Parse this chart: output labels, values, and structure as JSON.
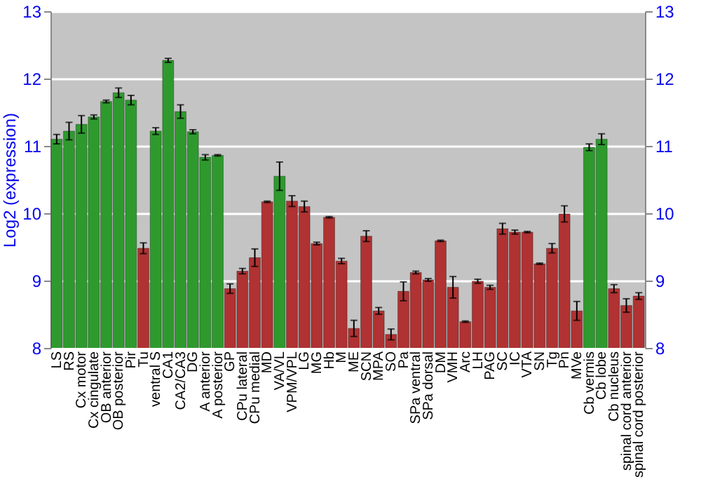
{
  "chart_data": {
    "type": "bar",
    "ylabel": "Log2 (expression)",
    "categories": [
      "LS",
      "RS",
      "Cx motor",
      "Cx cingulate",
      "OB anterior",
      "OB posterior",
      "Pir",
      "Tu",
      "ventral S",
      "CA1",
      "CA2/CA3",
      "DG",
      "A anterior",
      "A posterior",
      "GP",
      "CPu lateral",
      "CPu medial",
      "MD",
      "VA/VL",
      "VPM/VPL",
      "LG",
      "MG",
      "Hb",
      "M",
      "ME",
      "SCN",
      "MPA",
      "SO",
      "Pa",
      "SPa ventral",
      "SPa dorsal",
      "DM",
      "VMH",
      "Arc",
      "LH",
      "PAG",
      "SC",
      "IC",
      "VTA",
      "SN",
      "Tg",
      "Pn",
      "MVe",
      "Cb vermis",
      "Cb lobe",
      "Cb nucleus",
      "spinal cord anterior",
      "spinal cord posterior"
    ],
    "values": [
      11.1,
      11.22,
      11.32,
      11.43,
      11.66,
      11.79,
      11.68,
      9.48,
      11.22,
      12.27,
      11.51,
      11.21,
      10.83,
      10.86,
      8.88,
      9.14,
      9.34,
      10.17,
      10.55,
      10.18,
      10.1,
      9.55,
      9.94,
      9.29,
      8.29,
      9.66,
      8.55,
      8.2,
      8.84,
      9.12,
      9.01,
      9.59,
      8.9,
      8.39,
      8.99,
      8.9,
      9.77,
      9.72,
      9.72,
      9.25,
      9.48,
      9.99,
      8.55,
      10.98,
      11.1,
      8.88,
      8.63,
      8.77
    ],
    "errors": [
      0.07,
      0.13,
      0.13,
      0.03,
      0.02,
      0.07,
      0.07,
      0.08,
      0.05,
      0.03,
      0.1,
      0.03,
      0.04,
      0.01,
      0.07,
      0.04,
      0.13,
      0.01,
      0.21,
      0.08,
      0.08,
      0.02,
      0.01,
      0.04,
      0.12,
      0.08,
      0.05,
      0.08,
      0.14,
      0.02,
      0.02,
      0.01,
      0.16,
      0.01,
      0.03,
      0.03,
      0.08,
      0.03,
      0.01,
      0.01,
      0.07,
      0.12,
      0.14,
      0.05,
      0.08,
      0.06,
      0.1,
      0.05
    ],
    "colors": [
      "#2e9a2e",
      "#2e9a2e",
      "#2e9a2e",
      "#2e9a2e",
      "#2e9a2e",
      "#2e9a2e",
      "#2e9a2e",
      "#b03232",
      "#2e9a2e",
      "#2e9a2e",
      "#2e9a2e",
      "#2e9a2e",
      "#2e9a2e",
      "#2e9a2e",
      "#b03232",
      "#b03232",
      "#b03232",
      "#b03232",
      "#2e9a2e",
      "#b03232",
      "#b03232",
      "#b03232",
      "#b03232",
      "#b03232",
      "#b03232",
      "#b03232",
      "#b03232",
      "#b03232",
      "#b03232",
      "#b03232",
      "#b03232",
      "#b03232",
      "#b03232",
      "#b03232",
      "#b03232",
      "#b03232",
      "#b03232",
      "#b03232",
      "#b03232",
      "#b03232",
      "#b03232",
      "#b03232",
      "#b03232",
      "#2e9a2e",
      "#2e9a2e",
      "#b03232",
      "#b03232",
      "#b03232"
    ],
    "ylim": [
      8,
      13
    ],
    "yticks": [
      8,
      9,
      10,
      11,
      12,
      13
    ],
    "y2lim": [
      8,
      13
    ],
    "y2ticks": [
      8,
      9,
      10,
      11,
      12,
      13
    ],
    "grid": "y"
  }
}
